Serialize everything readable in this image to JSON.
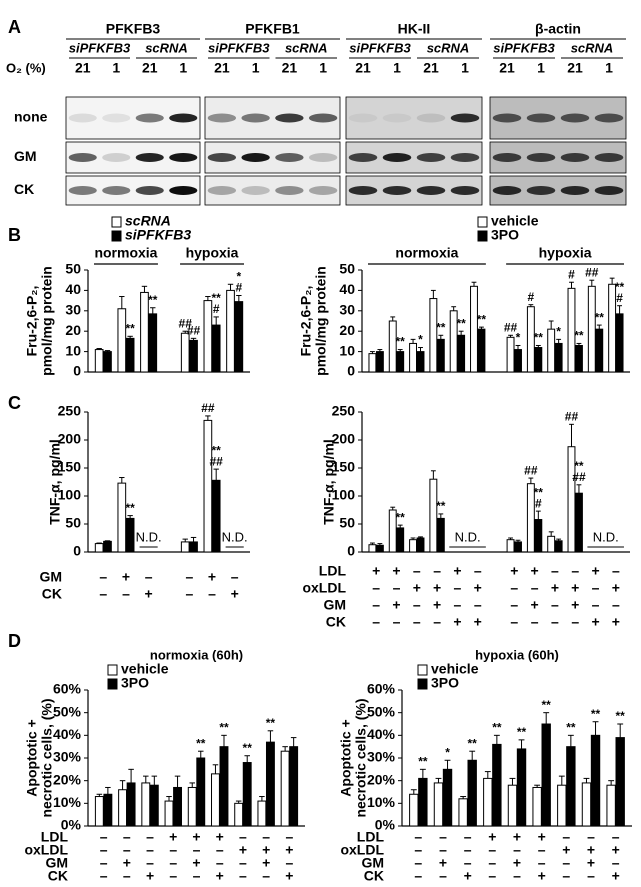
{
  "panel_labels": [
    "A",
    "B",
    "C",
    "D"
  ],
  "blot": {
    "proteins": [
      "PFKFB3",
      "PFKFB1",
      "HK-II",
      "β-actin"
    ],
    "treatments": [
      "siPFKFB3",
      "scRNA"
    ],
    "o2_label": "O₂ (%)",
    "o2_levels": [
      21,
      1,
      21,
      1
    ],
    "rows": [
      "none",
      "GM",
      "CK"
    ]
  },
  "chart_data": [
    {
      "type": "bar",
      "ylabel": [
        "Fru-2,6-P₂,",
        "pmol/mg protein"
      ],
      "ylim": [
        0,
        50
      ],
      "yticks": [
        0,
        10,
        20,
        30,
        40,
        50
      ],
      "groups": [
        {
          "label": "normoxia"
        },
        {
          "label": "hypoxia"
        }
      ],
      "series": [
        {
          "name": "scRNA",
          "color": "#ffffff",
          "values": [
            11,
            31,
            39,
            19,
            35,
            40
          ],
          "errors": [
            0.5,
            6,
            3,
            1,
            2,
            3
          ],
          "annotations": [
            null,
            null,
            null,
            [
              "##"
            ],
            null,
            null
          ]
        },
        {
          "name": "siPFKFB3",
          "color": "#000000",
          "values": [
            10,
            16.5,
            28.5,
            15.5,
            23,
            34.5
          ],
          "errors": [
            0.5,
            1,
            3,
            1,
            4,
            3
          ],
          "annotations": [
            null,
            [
              "**"
            ],
            [
              "**"
            ],
            [
              "##"
            ],
            [
              "**",
              "#"
            ],
            [
              "*",
              "#"
            ]
          ]
        }
      ]
    },
    {
      "type": "bar",
      "ylabel": [
        "Fru-2,6-P₂,",
        "pmol/mg protein"
      ],
      "ylim": [
        0,
        50
      ],
      "yticks": [
        0,
        10,
        20,
        30,
        40,
        50
      ],
      "groups": [
        {
          "label": "normoxia"
        },
        {
          "label": "hypoxia"
        }
      ],
      "series": [
        {
          "name": "vehicle",
          "color": "#ffffff",
          "values": [
            9,
            25,
            14,
            36,
            30,
            42,
            17,
            32,
            21,
            41,
            42,
            43
          ],
          "errors": [
            1,
            2,
            2,
            4,
            2,
            2,
            1,
            1,
            4,
            3,
            3,
            3
          ],
          "annotations": [
            null,
            null,
            null,
            null,
            null,
            null,
            [
              "##"
            ],
            [
              "#"
            ],
            null,
            [
              "#"
            ],
            [
              "##"
            ],
            null
          ]
        },
        {
          "name": "3PO",
          "color": "#000000",
          "values": [
            10,
            10,
            10,
            16,
            18,
            21,
            11,
            12,
            14,
            13,
            21,
            28.5
          ],
          "errors": [
            1,
            1,
            2,
            2,
            2,
            1,
            2,
            1,
            2,
            1,
            2,
            4
          ],
          "annotations": [
            null,
            [
              "**"
            ],
            [
              "*"
            ],
            [
              "**"
            ],
            [
              "**"
            ],
            [
              "**"
            ],
            [
              "*"
            ],
            [
              "**"
            ],
            [
              "*"
            ],
            [
              "**"
            ],
            [
              "**"
            ],
            [
              "**",
              "#"
            ]
          ]
        }
      ]
    },
    {
      "type": "bar",
      "ylabel": [
        "TNF-α, pg/ml"
      ],
      "ylim": [
        0,
        250
      ],
      "yticks": [
        0,
        50,
        100,
        150,
        200,
        250
      ],
      "series": [
        {
          "color": "#ffffff",
          "values": [
            15,
            123,
            null,
            18,
            235,
            null
          ],
          "errors": [
            1,
            10,
            null,
            5,
            8,
            null
          ],
          "annotations": [
            null,
            null,
            null,
            null,
            [
              "##"
            ],
            null
          ]
        },
        {
          "color": "#000000",
          "values": [
            19,
            60,
            null,
            18,
            128,
            null
          ],
          "errors": [
            1,
            5,
            null,
            8,
            20,
            null
          ],
          "annotations": [
            null,
            [
              "**"
            ],
            null,
            null,
            [
              "**",
              "##"
            ],
            null
          ]
        }
      ],
      "notes": [
        {
          "text": "N.D.",
          "columns": [
            2
          ]
        },
        {
          "text": "N.D.",
          "columns": [
            5
          ]
        }
      ],
      "conditions": [
        {
          "name": "GM",
          "values": [
            "–",
            "+",
            "–",
            "–",
            "+",
            "–"
          ]
        },
        {
          "name": "CK",
          "values": [
            "–",
            "–",
            "+",
            "–",
            "–",
            "+"
          ]
        }
      ]
    },
    {
      "type": "bar",
      "ylabel": [
        "TNF-α, pg/ml"
      ],
      "ylim": [
        0,
        250
      ],
      "yticks": [
        0,
        50,
        100,
        150,
        200,
        250
      ],
      "series": [
        {
          "color": "#ffffff",
          "values": [
            13,
            75,
            22,
            130,
            null,
            null,
            22,
            122,
            28,
            188,
            null,
            null
          ],
          "errors": [
            3,
            5,
            3,
            15,
            null,
            null,
            3,
            10,
            8,
            40,
            null,
            null
          ],
          "annotations": [
            null,
            null,
            null,
            null,
            null,
            null,
            null,
            [
              "##"
            ],
            null,
            [
              "##"
            ],
            null,
            null
          ]
        },
        {
          "color": "#000000",
          "values": [
            12,
            43,
            25,
            60,
            null,
            null,
            18,
            58,
            20,
            105,
            null,
            null
          ],
          "errors": [
            3,
            5,
            2,
            8,
            null,
            null,
            3,
            15,
            3,
            15,
            null,
            null
          ],
          "annotations": [
            null,
            [
              "**"
            ],
            null,
            [
              "**"
            ],
            null,
            null,
            null,
            [
              "**",
              "#"
            ],
            null,
            [
              "**",
              "##"
            ],
            null,
            null
          ]
        }
      ],
      "notes": [
        {
          "text": "N.D.",
          "columns": [
            4,
            5
          ]
        },
        {
          "text": "N.D.",
          "columns": [
            10,
            11
          ]
        }
      ],
      "conditions": [
        {
          "name": "LDL",
          "values": [
            "+",
            "+",
            "–",
            "–",
            "+",
            "–",
            "+",
            "+",
            "–",
            "–",
            "+",
            "–"
          ]
        },
        {
          "name": "oxLDL",
          "values": [
            "–",
            "–",
            "+",
            "+",
            "–",
            "+",
            "–",
            "–",
            "+",
            "+",
            "–",
            "+"
          ]
        },
        {
          "name": "GM",
          "values": [
            "–",
            "+",
            "–",
            "+",
            "–",
            "–",
            "–",
            "+",
            "–",
            "+",
            "–",
            "–"
          ]
        },
        {
          "name": "CK",
          "values": [
            "–",
            "–",
            "–",
            "–",
            "+",
            "+",
            "–",
            "–",
            "–",
            "–",
            "+",
            "+"
          ]
        }
      ]
    },
    {
      "type": "bar",
      "title": "normoxia (60h)",
      "ylabel": [
        "Apoptotic +",
        "necrotic cells, (%)"
      ],
      "ylim": [
        0,
        60
      ],
      "yticks": [
        {
          "value": 0,
          "label": "0%"
        },
        {
          "value": 10,
          "label": "10%"
        },
        {
          "value": 20,
          "label": "20%"
        },
        {
          "value": 30,
          "label": "30%"
        },
        {
          "value": 40,
          "label": "40%"
        },
        {
          "value": 50,
          "label": "50%"
        },
        {
          "value": 60,
          "label": "60%"
        }
      ],
      "series": [
        {
          "name": "vehicle",
          "color": "#ffffff",
          "values": [
            13,
            16,
            19,
            11,
            17,
            23,
            10,
            11,
            33
          ],
          "errors": [
            1,
            4,
            3,
            2,
            2,
            4,
            1,
            2,
            2
          ],
          "annotations": [
            null,
            null,
            null,
            null,
            null,
            null,
            null,
            null,
            null
          ]
        },
        {
          "name": "3PO",
          "color": "#000000",
          "values": [
            14,
            19,
            18,
            17,
            30,
            35,
            28,
            37,
            35
          ],
          "errors": [
            3,
            6,
            4,
            5,
            3,
            5,
            3,
            5,
            4
          ],
          "annotations": [
            null,
            null,
            null,
            null,
            [
              "**"
            ],
            [
              "**"
            ],
            [
              "**"
            ],
            [
              "**"
            ],
            null
          ]
        }
      ],
      "conditions": [
        {
          "name": "LDL",
          "values": [
            "–",
            "–",
            "–",
            "+",
            "+",
            "+",
            "–",
            "–",
            "–"
          ]
        },
        {
          "name": "oxLDL",
          "values": [
            "–",
            "–",
            "–",
            "–",
            "–",
            "–",
            "+",
            "+",
            "+"
          ]
        },
        {
          "name": "GM",
          "values": [
            "–",
            "+",
            "–",
            "–",
            "+",
            "–",
            "–",
            "+",
            "–"
          ]
        },
        {
          "name": "CK",
          "values": [
            "–",
            "–",
            "+",
            "–",
            "–",
            "+",
            "–",
            "–",
            "+"
          ]
        }
      ]
    },
    {
      "type": "bar",
      "title": "hypoxia (60h)",
      "ylabel": [
        "Apoptotic +",
        "necrotic cells, (%)"
      ],
      "ylim": [
        0,
        60
      ],
      "yticks": [
        {
          "value": 0,
          "label": "0%"
        },
        {
          "value": 10,
          "label": "10%"
        },
        {
          "value": 20,
          "label": "20%"
        },
        {
          "value": 30,
          "label": "30%"
        },
        {
          "value": 40,
          "label": "40%"
        },
        {
          "value": 50,
          "label": "50%"
        },
        {
          "value": 60,
          "label": "60%"
        }
      ],
      "series": [
        {
          "name": "vehicle",
          "color": "#ffffff",
          "values": [
            14,
            19,
            12,
            21,
            18,
            17,
            18,
            19,
            18
          ],
          "errors": [
            2,
            2,
            1,
            3,
            3,
            1,
            4,
            2,
            2
          ],
          "annotations": [
            null,
            null,
            null,
            null,
            null,
            null,
            null,
            null,
            null
          ]
        },
        {
          "name": "3PO",
          "color": "#000000",
          "values": [
            21,
            25,
            29,
            36,
            34,
            45,
            35,
            40,
            39
          ],
          "errors": [
            4,
            4,
            4,
            4,
            4,
            5,
            5,
            6,
            6
          ],
          "annotations": [
            [
              "**"
            ],
            [
              "*"
            ],
            [
              "**"
            ],
            [
              "**"
            ],
            [
              "**"
            ],
            [
              "**"
            ],
            [
              "**"
            ],
            [
              "**"
            ],
            [
              "**"
            ]
          ]
        }
      ],
      "conditions": [
        {
          "name": "LDL",
          "values": [
            "–",
            "–",
            "–",
            "+",
            "+",
            "+",
            "–",
            "–",
            "–"
          ]
        },
        {
          "name": "oxLDL",
          "values": [
            "–",
            "–",
            "–",
            "–",
            "–",
            "–",
            "+",
            "+",
            "+"
          ]
        },
        {
          "name": "GM",
          "values": [
            "–",
            "+",
            "–",
            "–",
            "+",
            "–",
            "–",
            "+",
            "–"
          ]
        },
        {
          "name": "CK",
          "values": [
            "–",
            "–",
            "+",
            "–",
            "–",
            "+",
            "–",
            "–",
            "+"
          ]
        }
      ]
    }
  ]
}
